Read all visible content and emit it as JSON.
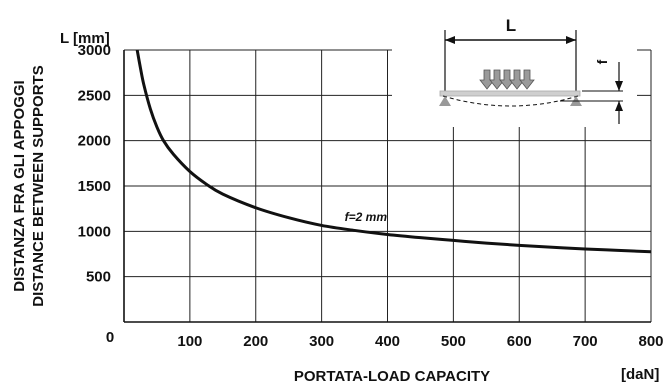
{
  "chart_data": {
    "type": "line",
    "title": "",
    "ylabel_unit": "L [mm]",
    "ylabel_lines": [
      "DISTANZA FRA GLI APPOGGI",
      "DISTANCE BETWEEN SUPPORTS"
    ],
    "xlabel": "PORTATA-LOAD  CAPACITY",
    "xlabel_unit": "[daN]",
    "xlim": [
      0,
      800
    ],
    "ylim": [
      0,
      3000
    ],
    "x_ticks": [
      0,
      100,
      200,
      300,
      400,
      500,
      600,
      700,
      800
    ],
    "y_ticks": [
      500,
      1000,
      1500,
      2000,
      2500,
      3000
    ],
    "origin_label": "0",
    "grid": true,
    "series": [
      {
        "name": "f=2 mm",
        "color": "#111111",
        "x": [
          20,
          25,
          30,
          40,
          50,
          60,
          75,
          100,
          125,
          150,
          200,
          250,
          300,
          350,
          400,
          450,
          500,
          550,
          600,
          650,
          700,
          750,
          800
        ],
        "y": [
          3000,
          2800,
          2620,
          2350,
          2150,
          2000,
          1850,
          1660,
          1520,
          1410,
          1260,
          1150,
          1065,
          1010,
          965,
          930,
          900,
          870,
          845,
          825,
          805,
          790,
          775
        ]
      }
    ],
    "annotations": [
      {
        "text": "f=2 mm",
        "x": 335,
        "y": 1070
      }
    ],
    "inset_diagram": {
      "span_label": "L",
      "deflection_label": "f"
    }
  }
}
